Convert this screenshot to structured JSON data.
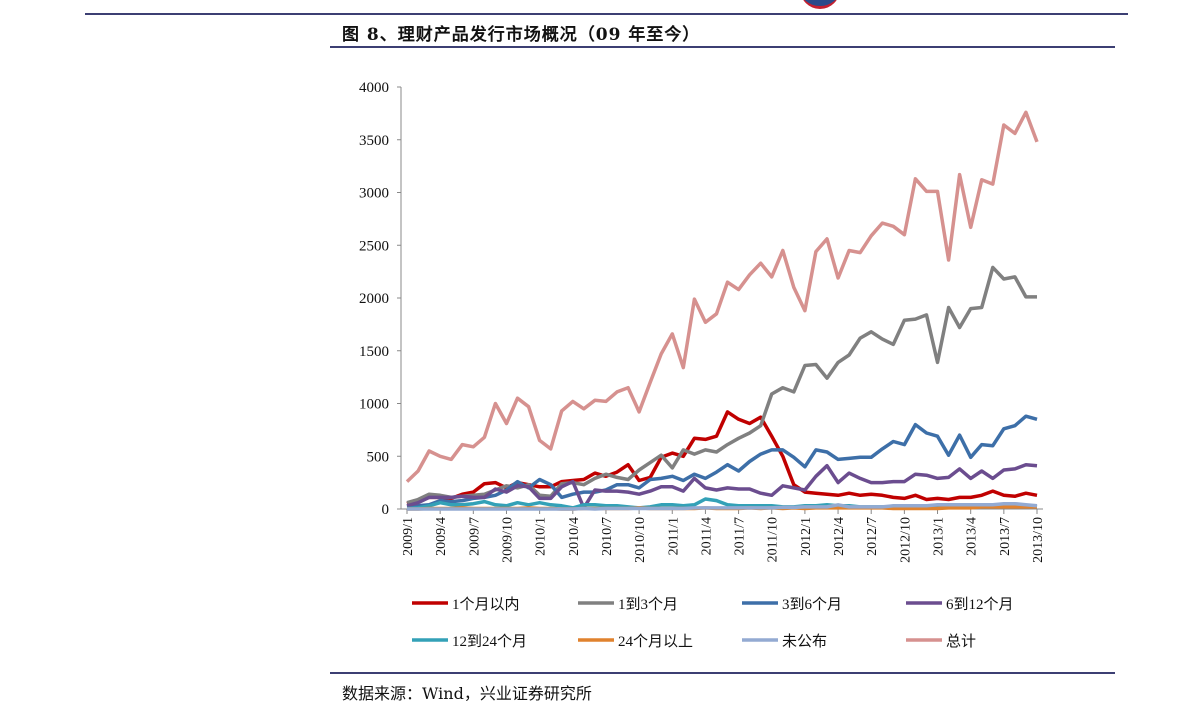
{
  "header": {
    "title": "图 8、理财产品发行市场概况（09 年至今）"
  },
  "footer": {
    "source": "数据来源：Wind，兴业证券研究所"
  },
  "chart_data": {
    "type": "line",
    "title": "图 8、理财产品发行市场概况（09 年至今）",
    "xlabel": "",
    "ylabel": "",
    "ylim": [
      0,
      4000
    ],
    "yticks": [
      0,
      500,
      1000,
      1500,
      2000,
      2500,
      3000,
      3500,
      4000
    ],
    "x_start": "2009/1",
    "x_count": 58,
    "xtick_labels": [
      "2009/1",
      "2009/4",
      "2009/7",
      "2009/10",
      "2010/1",
      "2010/4",
      "2010/7",
      "2010/10",
      "2011/1",
      "2011/4",
      "2011/7",
      "2011/10",
      "2012/1",
      "2012/4",
      "2012/7",
      "2012/10",
      "2013/1",
      "2013/4",
      "2013/7",
      "2013/10"
    ],
    "legend_position": "bottom",
    "grid": false,
    "series": [
      {
        "name": "1个月以内",
        "color": "#C00000",
        "values": [
          50,
          80,
          110,
          110,
          100,
          140,
          160,
          240,
          250,
          200,
          250,
          230,
          210,
          210,
          260,
          270,
          280,
          340,
          310,
          350,
          420,
          270,
          300,
          490,
          530,
          500,
          670,
          660,
          690,
          920,
          850,
          810,
          870,
          690,
          500,
          230,
          160,
          150,
          140,
          130,
          150,
          130,
          140,
          130,
          110,
          100,
          130,
          90,
          100,
          90,
          110,
          110,
          130,
          170,
          130,
          120,
          150,
          130
        ]
      },
      {
        "name": "1到3个月",
        "color": "#808080",
        "values": [
          60,
          90,
          140,
          130,
          110,
          120,
          130,
          140,
          180,
          220,
          200,
          230,
          130,
          120,
          240,
          250,
          230,
          290,
          330,
          300,
          280,
          370,
          440,
          510,
          390,
          560,
          520,
          560,
          540,
          610,
          670,
          720,
          790,
          1090,
          1150,
          1110,
          1360,
          1370,
          1240,
          1390,
          1460,
          1620,
          1680,
          1610,
          1560,
          1790,
          1800,
          1840,
          1390,
          1910,
          1720,
          1900,
          1910,
          2290,
          2180,
          2200,
          2010,
          2010
        ]
      },
      {
        "name": "3到6个月",
        "color": "#3D6FA8",
        "values": [
          20,
          30,
          40,
          80,
          70,
          80,
          100,
          110,
          130,
          180,
          260,
          200,
          280,
          230,
          110,
          140,
          160,
          160,
          180,
          230,
          230,
          200,
          280,
          290,
          310,
          270,
          330,
          290,
          350,
          420,
          360,
          450,
          520,
          560,
          560,
          490,
          400,
          560,
          540,
          470,
          480,
          490,
          490,
          570,
          640,
          610,
          800,
          720,
          690,
          510,
          700,
          490,
          610,
          600,
          760,
          790,
          880,
          850
        ]
      },
      {
        "name": "6到12个月",
        "color": "#6B4D8F",
        "values": [
          30,
          60,
          110,
          110,
          110,
          120,
          110,
          110,
          190,
          160,
          220,
          210,
          100,
          100,
          210,
          260,
          10,
          180,
          170,
          170,
          160,
          140,
          170,
          210,
          210,
          170,
          290,
          200,
          180,
          200,
          190,
          190,
          150,
          130,
          220,
          200,
          180,
          310,
          410,
          250,
          340,
          290,
          250,
          250,
          260,
          260,
          330,
          320,
          290,
          300,
          380,
          290,
          360,
          290,
          370,
          380,
          420,
          410
        ]
      },
      {
        "name": "12到24个月",
        "color": "#33A1B7",
        "values": [
          5,
          10,
          30,
          60,
          40,
          40,
          50,
          70,
          40,
          30,
          60,
          40,
          60,
          40,
          30,
          10,
          40,
          40,
          30,
          30,
          20,
          10,
          20,
          40,
          40,
          30,
          40,
          95,
          80,
          40,
          30,
          30,
          30,
          30,
          20,
          20,
          30,
          30,
          40,
          30,
          30,
          20,
          20,
          20,
          20,
          20,
          20,
          20,
          30,
          30,
          20,
          20,
          30,
          30,
          30,
          40,
          30,
          20
        ]
      },
      {
        "name": "24个月以上",
        "color": "#E0822E",
        "values": [
          0,
          0,
          5,
          5,
          5,
          10,
          5,
          5,
          5,
          5,
          5,
          10,
          5,
          5,
          0,
          0,
          5,
          5,
          5,
          5,
          5,
          10,
          5,
          5,
          5,
          5,
          5,
          10,
          5,
          5,
          5,
          10,
          5,
          10,
          5,
          10,
          5,
          10,
          10,
          10,
          10,
          10,
          10,
          10,
          5,
          5,
          5,
          5,
          5,
          10,
          10,
          10,
          20,
          20,
          20,
          20,
          20,
          20
        ]
      },
      {
        "name": "未公布",
        "color": "#93AAD2",
        "values": [
          0,
          0,
          0,
          0,
          0,
          0,
          0,
          0,
          0,
          0,
          0,
          0,
          0,
          0,
          0,
          0,
          5,
          0,
          5,
          5,
          5,
          5,
          5,
          5,
          5,
          5,
          10,
          10,
          10,
          10,
          10,
          10,
          10,
          10,
          15,
          15,
          20,
          20,
          20,
          40,
          20,
          20,
          20,
          20,
          30,
          30,
          30,
          30,
          40,
          40,
          40,
          40,
          40,
          40,
          50,
          50,
          40,
          30
        ]
      },
      {
        "name": "总计",
        "color": "#D6918F",
        "values": [
          260,
          360,
          550,
          500,
          470,
          610,
          590,
          680,
          1000,
          810,
          1050,
          970,
          650,
          570,
          930,
          1020,
          950,
          1030,
          1020,
          1110,
          1150,
          920,
          1200,
          1470,
          1660,
          1340,
          1990,
          1770,
          1850,
          2150,
          2080,
          2220,
          2330,
          2200,
          2450,
          2100,
          1880,
          2440,
          2560,
          2190,
          2450,
          2430,
          2590,
          2710,
          2680,
          2600,
          3130,
          3010,
          3010,
          2360,
          3170,
          2670,
          3120,
          3080,
          3640,
          3560,
          3760,
          3480
        ]
      }
    ]
  }
}
